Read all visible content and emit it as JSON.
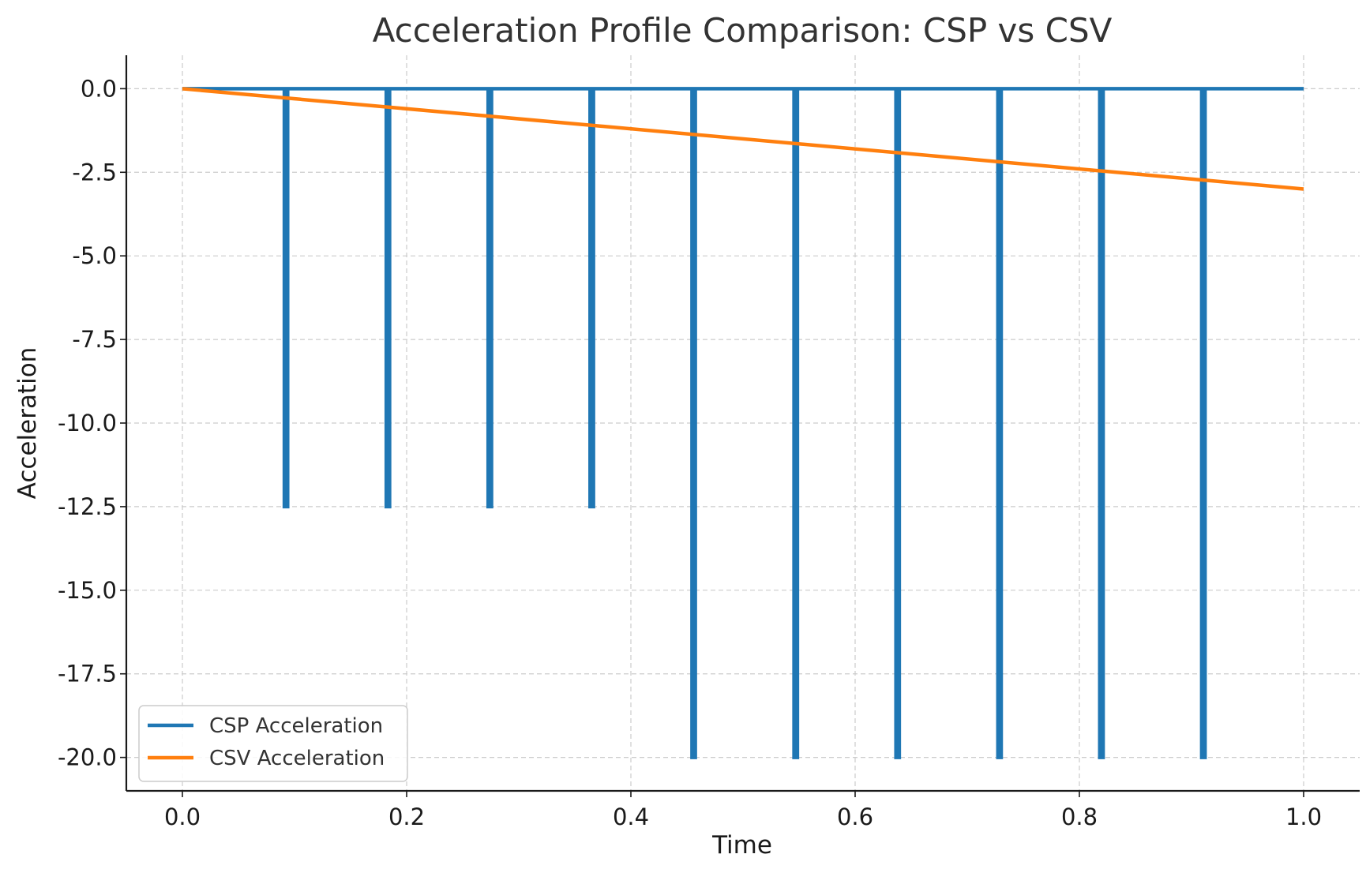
{
  "chart_data": {
    "type": "line",
    "title": "Acceleration Profile Comparison: CSP vs CSV",
    "xlabel": "Time",
    "ylabel": "Acceleration",
    "xlim": [
      -0.05,
      1.05
    ],
    "ylim": [
      -21.0,
      1.0
    ],
    "grid": true,
    "legend_position": "bottom-left",
    "x_ticks": [
      0.0,
      0.2,
      0.4,
      0.6,
      0.8,
      1.0
    ],
    "x_tick_labels": [
      "0.0",
      "0.2",
      "0.4",
      "0.6",
      "0.8",
      "1.0"
    ],
    "y_ticks": [
      0.0,
      -2.5,
      -5.0,
      -7.5,
      -10.0,
      -12.5,
      -15.0,
      -17.5,
      -20.0
    ],
    "y_tick_labels": [
      "0.0",
      "-2.5",
      "-5.0",
      "-7.5",
      "-10.0",
      "-12.5",
      "-15.0",
      "-17.5",
      "-20.0"
    ],
    "series": [
      {
        "name": "CSP Acceleration",
        "color": "#1f77b4",
        "style": "pulse-train",
        "baseline": 0.0,
        "pulse_width": 0.003,
        "pulses": [
          {
            "t": 0.0909,
            "value": -12.5
          },
          {
            "t": 0.1818,
            "value": -12.5
          },
          {
            "t": 0.2727,
            "value": -12.5
          },
          {
            "t": 0.3636,
            "value": -12.5
          },
          {
            "t": 0.4545,
            "value": -20.0
          },
          {
            "t": 0.5455,
            "value": -20.0
          },
          {
            "t": 0.6364,
            "value": -20.0
          },
          {
            "t": 0.7273,
            "value": -20.0
          },
          {
            "t": 0.8182,
            "value": -20.0
          },
          {
            "t": 0.9091,
            "value": -20.0
          }
        ],
        "x_range": [
          0.0,
          1.0
        ]
      },
      {
        "name": "CSV Acceleration",
        "color": "#ff7f0e",
        "style": "line",
        "x": [
          0.0,
          1.0
        ],
        "y": [
          0.0,
          -3.0
        ]
      }
    ]
  }
}
